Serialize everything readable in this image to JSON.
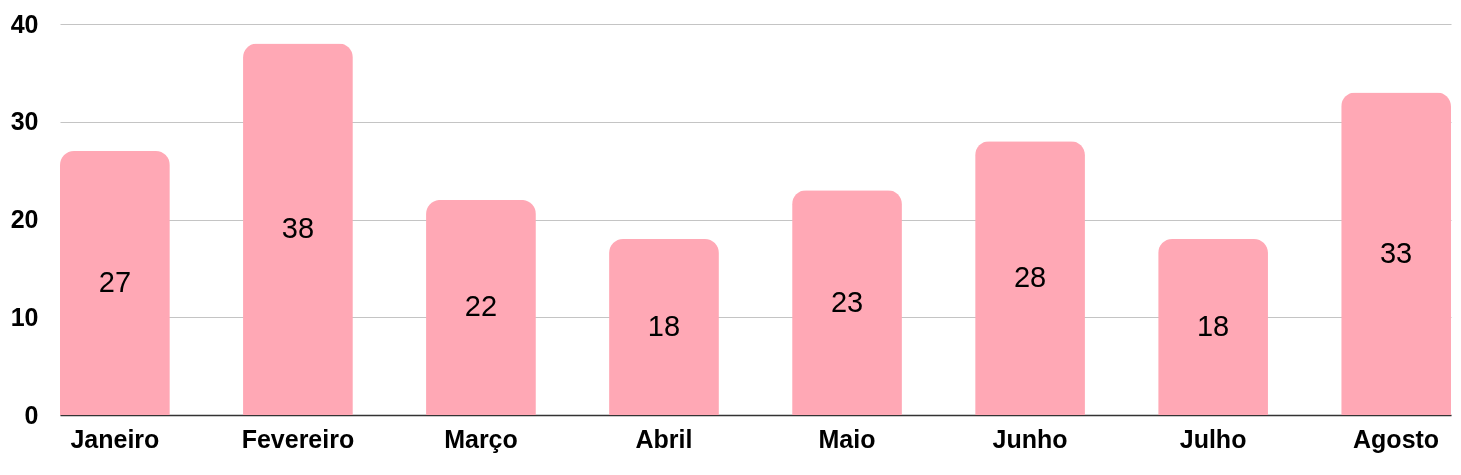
{
  "chart_data": {
    "type": "bar",
    "categories": [
      "Janeiro",
      "Fevereiro",
      "Março",
      "Abril",
      "Maio",
      "Junho",
      "Julho",
      "Agosto"
    ],
    "values": [
      27,
      38,
      22,
      18,
      23,
      28,
      18,
      33
    ],
    "color": "#ffa8b5",
    "ylim": [
      0,
      40
    ],
    "yticks": [
      0,
      10,
      20,
      30,
      40
    ],
    "grid": "y",
    "data_labels": true
  }
}
